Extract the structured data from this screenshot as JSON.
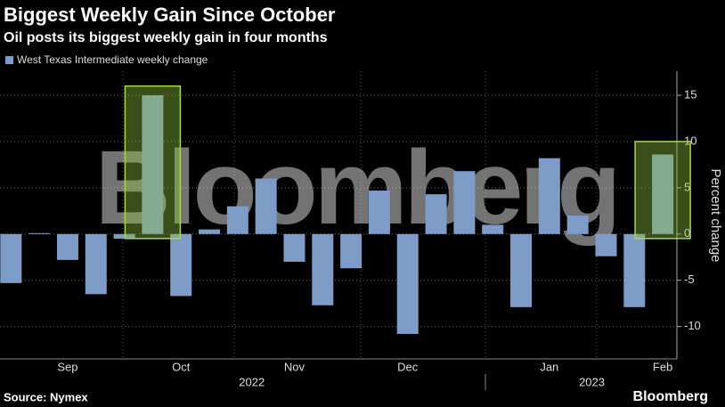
{
  "chart_data": {
    "type": "bar",
    "title": "Biggest Weekly Gain Since October",
    "subtitle": "Oil posts its biggest weekly gain in four months",
    "series": [
      {
        "name": "West Texas Intermediate weekly change",
        "color": "#7e9cc8",
        "values": [
          -5.3,
          0.1,
          -2.8,
          -6.5,
          -0.5,
          15.0,
          -6.7,
          0.5,
          3.0,
          6.0,
          -3.0,
          -7.7,
          -3.7,
          4.7,
          -10.8,
          4.3,
          6.8,
          1.0,
          -7.9,
          8.2,
          2.0,
          -2.4,
          -7.9,
          8.6
        ]
      }
    ],
    "categories": [
      null,
      null,
      "Sep",
      null,
      null,
      null,
      "Oct",
      null,
      null,
      null,
      "Nov",
      null,
      null,
      null,
      "Dec",
      null,
      null,
      null,
      null,
      "Jan",
      null,
      null,
      null,
      "Feb"
    ],
    "years": [
      "2022",
      "2023"
    ],
    "y_label": "Percent change",
    "ylim": [
      -13.5,
      17.6
    ],
    "yticks": [
      -10,
      -5,
      0,
      5,
      10,
      15
    ],
    "grid": true,
    "watermark": "Bloomberg",
    "source": "Source: Nymex",
    "logo": "Bloomberg"
  }
}
